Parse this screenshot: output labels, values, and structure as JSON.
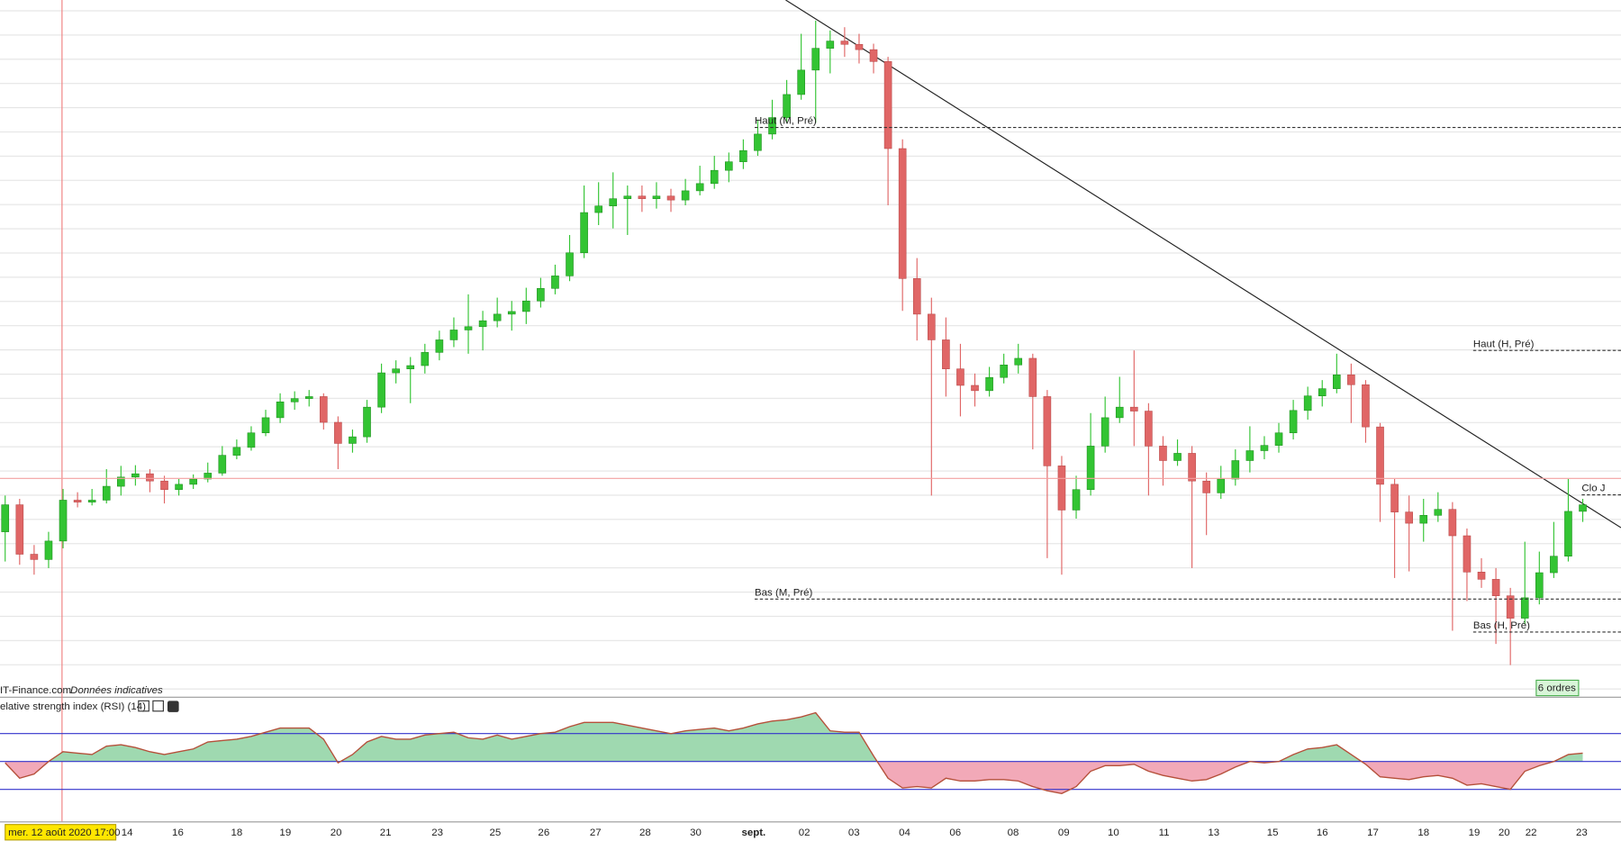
{
  "chart_data": {
    "type": "candlestick",
    "ylim": [
      0,
      100
    ],
    "up_color": "#33c433",
    "down_color": "#e06666",
    "ohlc": [
      [
        22.5,
        28.0,
        18.0,
        26.6
      ],
      [
        26.6,
        27.5,
        17.5,
        19.1
      ],
      [
        19.1,
        20.5,
        16.0,
        18.3
      ],
      [
        18.3,
        22.5,
        17.0,
        21.1
      ],
      [
        21.1,
        29.0,
        20.0,
        27.3
      ],
      [
        27.3,
        28.5,
        26.2,
        27.0
      ],
      [
        27.0,
        29.0,
        26.5,
        27.3
      ],
      [
        27.3,
        32.0,
        26.8,
        29.4
      ],
      [
        29.4,
        32.5,
        28.0,
        30.8
      ],
      [
        30.8,
        32.6,
        29.5,
        31.3
      ],
      [
        31.3,
        32.0,
        28.5,
        30.2
      ],
      [
        30.2,
        31.0,
        26.8,
        28.9
      ],
      [
        28.9,
        30.5,
        28.0,
        29.7
      ],
      [
        29.7,
        31.2,
        29.0,
        30.5
      ],
      [
        30.5,
        33.0,
        30.0,
        31.4
      ],
      [
        31.4,
        35.5,
        31.0,
        34.1
      ],
      [
        34.1,
        36.5,
        33.5,
        35.3
      ],
      [
        35.3,
        38.5,
        34.8,
        37.5
      ],
      [
        37.5,
        41.0,
        37.0,
        39.8
      ],
      [
        39.8,
        43.5,
        39.0,
        42.2
      ],
      [
        42.2,
        43.8,
        41.0,
        42.7
      ],
      [
        42.7,
        44.0,
        41.5,
        43.0
      ],
      [
        43.0,
        43.5,
        38.0,
        39.1
      ],
      [
        39.1,
        40.0,
        32.0,
        35.9
      ],
      [
        35.9,
        38.0,
        34.5,
        36.9
      ],
      [
        36.9,
        42.5,
        36.0,
        41.4
      ],
      [
        41.4,
        48.0,
        40.5,
        46.6
      ],
      [
        46.6,
        48.5,
        45.0,
        47.2
      ],
      [
        47.2,
        49.0,
        42.0,
        47.7
      ],
      [
        47.7,
        51.0,
        46.5,
        49.7
      ],
      [
        49.7,
        53.0,
        48.5,
        51.6
      ],
      [
        51.6,
        55.0,
        50.5,
        53.1
      ],
      [
        53.1,
        58.5,
        49.5,
        53.6
      ],
      [
        53.6,
        56.0,
        50.0,
        54.5
      ],
      [
        54.5,
        58.0,
        53.5,
        55.5
      ],
      [
        55.5,
        57.5,
        53.0,
        55.9
      ],
      [
        55.9,
        59.5,
        54.0,
        57.5
      ],
      [
        57.5,
        61.0,
        56.5,
        59.4
      ],
      [
        59.4,
        63.0,
        58.5,
        61.3
      ],
      [
        61.3,
        67.5,
        60.5,
        64.8
      ],
      [
        64.8,
        75.0,
        64.0,
        70.9
      ],
      [
        70.9,
        75.5,
        69.0,
        71.9
      ],
      [
        71.9,
        77.0,
        68.5,
        73.0
      ],
      [
        73.0,
        75.0,
        67.5,
        73.4
      ],
      [
        73.4,
        75.0,
        71.0,
        73.0
      ],
      [
        73.0,
        75.5,
        71.5,
        73.4
      ],
      [
        73.4,
        74.5,
        71.0,
        72.8
      ],
      [
        72.8,
        76.0,
        72.0,
        74.2
      ],
      [
        74.2,
        78.0,
        73.5,
        75.3
      ],
      [
        75.3,
        79.5,
        74.5,
        77.3
      ],
      [
        77.3,
        80.0,
        75.5,
        78.6
      ],
      [
        78.6,
        82.0,
        77.5,
        80.3
      ],
      [
        80.3,
        85.0,
        79.5,
        82.8
      ],
      [
        82.8,
        88.0,
        82.0,
        85.3
      ],
      [
        85.3,
        91.0,
        84.5,
        88.8
      ],
      [
        88.8,
        98.0,
        88.0,
        92.5
      ],
      [
        92.5,
        100.0,
        84.5,
        95.8
      ],
      [
        95.8,
        98.5,
        92.0,
        96.9
      ],
      [
        96.9,
        99.0,
        94.5,
        96.4
      ],
      [
        96.4,
        98.0,
        93.5,
        95.6
      ],
      [
        95.6,
        96.5,
        92.0,
        93.8
      ],
      [
        93.8,
        94.5,
        72.0,
        80.6
      ],
      [
        80.6,
        82.0,
        56.0,
        60.9
      ],
      [
        60.9,
        64.0,
        51.5,
        55.5
      ],
      [
        55.5,
        58.0,
        28.0,
        51.6
      ],
      [
        51.6,
        55.0,
        43.0,
        47.2
      ],
      [
        47.2,
        51.0,
        40.0,
        44.7
      ],
      [
        44.7,
        46.5,
        41.5,
        43.9
      ],
      [
        43.9,
        47.5,
        43.0,
        45.9
      ],
      [
        45.9,
        49.5,
        45.0,
        47.8
      ],
      [
        47.8,
        51.0,
        46.5,
        48.8
      ],
      [
        48.8,
        49.5,
        35.0,
        43.0
      ],
      [
        43.0,
        44.0,
        18.5,
        32.5
      ],
      [
        32.5,
        34.0,
        16.0,
        25.8
      ],
      [
        25.8,
        31.0,
        24.5,
        28.9
      ],
      [
        28.9,
        40.5,
        28.0,
        35.5
      ],
      [
        35.5,
        43.0,
        34.5,
        39.8
      ],
      [
        39.8,
        46.0,
        39.0,
        41.4
      ],
      [
        41.4,
        50.0,
        35.5,
        40.8
      ],
      [
        40.8,
        42.0,
        28.0,
        35.5
      ],
      [
        35.5,
        37.0,
        29.5,
        33.3
      ],
      [
        33.3,
        36.5,
        32.5,
        34.4
      ],
      [
        34.4,
        35.5,
        17.0,
        30.2
      ],
      [
        30.2,
        31.5,
        22.0,
        28.4
      ],
      [
        28.4,
        32.5,
        27.5,
        30.5
      ],
      [
        30.5,
        35.0,
        29.5,
        33.3
      ],
      [
        33.3,
        38.5,
        31.5,
        34.8
      ],
      [
        34.8,
        37.0,
        33.5,
        35.6
      ],
      [
        35.6,
        39.0,
        34.5,
        37.5
      ],
      [
        37.5,
        42.5,
        36.5,
        40.9
      ],
      [
        40.9,
        44.5,
        39.5,
        43.1
      ],
      [
        43.1,
        45.5,
        41.5,
        44.2
      ],
      [
        44.2,
        49.5,
        43.5,
        46.3
      ],
      [
        46.3,
        48.0,
        39.0,
        44.8
      ],
      [
        44.8,
        45.5,
        36.0,
        38.4
      ],
      [
        38.4,
        39.0,
        24.0,
        29.7
      ],
      [
        29.7,
        30.5,
        15.5,
        25.5
      ],
      [
        25.5,
        28.0,
        16.5,
        23.8
      ],
      [
        23.8,
        27.5,
        21.0,
        25.0
      ],
      [
        25.0,
        28.5,
        24.0,
        25.9
      ],
      [
        25.9,
        27.0,
        7.5,
        21.9
      ],
      [
        21.9,
        23.0,
        12.0,
        16.4
      ],
      [
        16.4,
        18.5,
        14.0,
        15.3
      ],
      [
        15.3,
        17.0,
        5.5,
        12.8
      ],
      [
        12.8,
        14.0,
        2.3,
        9.4
      ],
      [
        9.4,
        21.0,
        8.5,
        12.5
      ],
      [
        12.5,
        19.5,
        11.5,
        16.3
      ],
      [
        16.3,
        24.0,
        15.5,
        18.8
      ],
      [
        18.8,
        30.5,
        18.0,
        25.6
      ],
      [
        25.6,
        27.5,
        24.0,
        26.6
      ]
    ],
    "levels": [
      {
        "label": "Haut (M, Pré)",
        "value": 83.8
      },
      {
        "label": "Bas (M, Pré)",
        "value": 12.3
      },
      {
        "label": "Haut (H, Pré)",
        "value": 50.0
      },
      {
        "label": "Bas (H, Pré)",
        "value": 7.3
      },
      {
        "label": "Clo J",
        "value": 28.1
      }
    ],
    "crosshair": {
      "label": "mer. 12 août 2020 17:00",
      "value": 30.6
    },
    "x_labels": [
      "14",
      "16",
      "18",
      "19",
      "20",
      "21",
      "23",
      "25",
      "26",
      "27",
      "28",
      "30",
      "sept.",
      "02",
      "03",
      "04",
      "06",
      "08",
      "09",
      "10",
      "11",
      "13",
      "15",
      "16",
      "17",
      "18",
      "19",
      "20",
      "22",
      "23"
    ],
    "source": "IT-Finance.com",
    "note": "Données indicatives",
    "orders": "6 ordres",
    "rsi": {
      "title": "elative strength index (RSI) (14)",
      "ylim": [
        7,
        95
      ],
      "levels": [
        30,
        50,
        70
      ],
      "line_color": "#b5503a",
      "above_color": "#9fd9b0",
      "below_color": "#f2a9b8",
      "level_color": "#3333cc",
      "values": [
        49,
        38,
        41,
        50,
        57,
        56,
        55,
        61,
        62,
        60,
        57,
        55,
        57,
        59,
        64,
        65,
        66,
        68,
        71,
        74,
        74,
        74,
        66,
        49,
        55,
        64,
        68,
        66,
        66,
        69,
        70,
        71,
        67,
        66,
        69,
        66,
        68,
        70,
        71,
        75,
        78,
        78,
        78,
        76,
        74,
        72,
        70,
        72,
        73,
        74,
        72,
        74,
        77,
        79,
        80,
        82,
        85,
        72,
        71,
        71,
        54,
        38,
        31,
        32,
        31,
        38,
        36,
        36,
        37,
        37,
        36,
        32,
        29,
        27,
        32,
        43,
        47,
        47,
        48,
        43,
        40,
        38,
        36,
        37,
        41,
        46,
        50,
        49,
        50,
        55,
        59,
        60,
        62,
        55,
        48,
        39,
        38,
        37,
        39,
        40,
        38,
        33,
        34,
        32,
        30,
        43,
        47,
        50,
        55,
        56
      ]
    }
  }
}
